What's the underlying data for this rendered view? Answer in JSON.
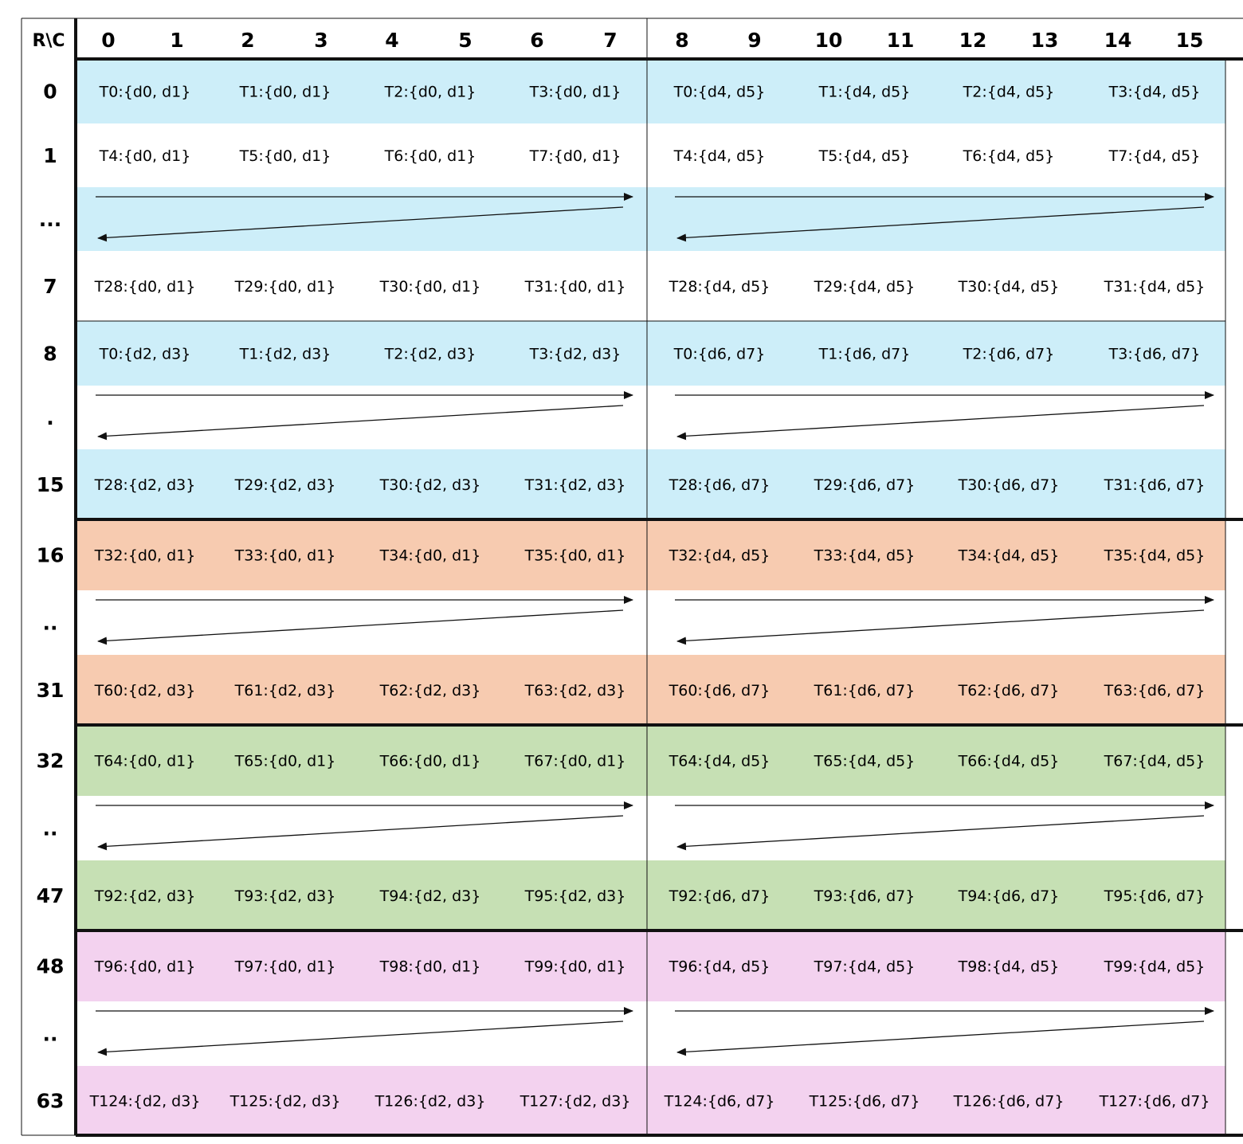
{
  "corner_label": "R\\C",
  "column_headers": [
    "0",
    "1",
    "2",
    "3",
    "4",
    "5",
    "6",
    "7",
    "8",
    "9",
    "10",
    "11",
    "12",
    "13",
    "14",
    "15"
  ],
  "colors": {
    "blue": "#cdeef9",
    "orange": "#f7cbb0",
    "green": "#c6e0b4",
    "pink": "#f3d2ef",
    "white": "#ffffff"
  },
  "rows": [
    {
      "label": "0",
      "fill": "blue",
      "cells": [
        "T0:{d0, d1}",
        "T1:{d0, d1}",
        "T2:{d0, d1}",
        "T3:{d0, d1}",
        "T0:{d4, d5}",
        "T1:{d4, d5}",
        "T2:{d4, d5}",
        "T3:{d4, d5}"
      ]
    },
    {
      "label": "1",
      "fill": "white",
      "cells": [
        "T4:{d0, d1}",
        "T5:{d0, d1}",
        "T6:{d0, d1}",
        "T7:{d0, d1}",
        "T4:{d4, d5}",
        "T5:{d4, d5}",
        "T6:{d4, d5}",
        "T7:{d4, d5}"
      ]
    },
    {
      "label": "...",
      "fill": "blue",
      "arrow": true
    },
    {
      "label": "7",
      "fill": "white",
      "cells": [
        "T28:{d0, d1}",
        "T29:{d0, d1}",
        "T30:{d0, d1}",
        "T31:{d0, d1}",
        "T28:{d4, d5}",
        "T29:{d4, d5}",
        "T30:{d4, d5}",
        "T31:{d4, d5}"
      ]
    },
    {
      "label": "8",
      "fill": "blue",
      "cells": [
        "T0:{d2, d3}",
        "T1:{d2, d3}",
        "T2:{d2, d3}",
        "T3:{d2, d3}",
        "T0:{d6, d7}",
        "T1:{d6, d7}",
        "T2:{d6, d7}",
        "T3:{d6, d7}"
      ]
    },
    {
      "label": ".",
      "fill": "white",
      "arrow": true
    },
    {
      "label": "15",
      "fill": "blue",
      "cells": [
        "T28:{d2, d3}",
        "T29:{d2, d3}",
        "T30:{d2, d3}",
        "T31:{d2, d3}",
        "T28:{d6, d7}",
        "T29:{d6, d7}",
        "T30:{d6, d7}",
        "T31:{d6, d7}"
      ]
    },
    {
      "label": "16",
      "fill": "orange",
      "cells": [
        "T32:{d0, d1}",
        "T33:{d0, d1}",
        "T34:{d0, d1}",
        "T35:{d0, d1}",
        "T32:{d4, d5}",
        "T33:{d4, d5}",
        "T34:{d4, d5}",
        "T35:{d4, d5}"
      ]
    },
    {
      "label": "..",
      "fill": "white",
      "arrow": true
    },
    {
      "label": "31",
      "fill": "orange",
      "cells": [
        "T60:{d2, d3}",
        "T61:{d2, d3}",
        "T62:{d2, d3}",
        "T63:{d2, d3}",
        "T60:{d6, d7}",
        "T61:{d6, d7}",
        "T62:{d6, d7}",
        "T63:{d6, d7}"
      ]
    },
    {
      "label": "32",
      "fill": "green",
      "cells": [
        "T64:{d0, d1}",
        "T65:{d0, d1}",
        "T66:{d0, d1}",
        "T67:{d0, d1}",
        "T64:{d4, d5}",
        "T65:{d4, d5}",
        "T66:{d4, d5}",
        "T67:{d4, d5}"
      ]
    },
    {
      "label": "..",
      "fill": "white",
      "arrow": true
    },
    {
      "label": "47",
      "fill": "green",
      "cells": [
        "T92:{d2, d3}",
        "T93:{d2, d3}",
        "T94:{d2, d3}",
        "T95:{d2, d3}",
        "T92:{d6, d7}",
        "T93:{d6, d7}",
        "T94:{d6, d7}",
        "T95:{d6, d7}"
      ]
    },
    {
      "label": "48",
      "fill": "pink",
      "cells": [
        "T96:{d0, d1}",
        "T97:{d0, d1}",
        "T98:{d0, d1}",
        "T99:{d0, d1}",
        "T96:{d4, d5}",
        "T97:{d4, d5}",
        "T98:{d4, d5}",
        "T99:{d4, d5}"
      ]
    },
    {
      "label": "..",
      "fill": "white",
      "arrow": true
    },
    {
      "label": "63",
      "fill": "pink",
      "cells": [
        "T124:{d2, d3}",
        "T125:{d2, d3}",
        "T126:{d2, d3}",
        "T127:{d2, d3}",
        "T124:{d6, d7}",
        "T125:{d6, d7}",
        "T126:{d6, d7}",
        "T127:{d6, d7}"
      ]
    }
  ]
}
